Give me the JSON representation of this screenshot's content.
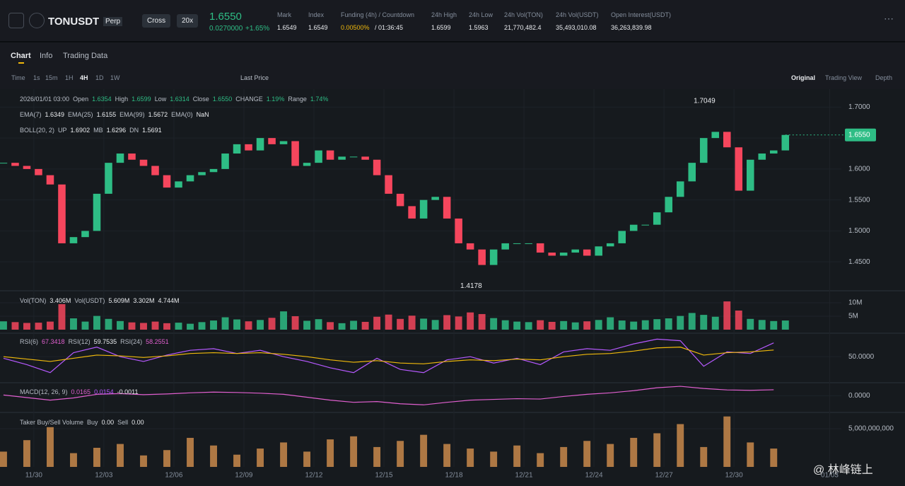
{
  "header": {
    "symbol": "TONUSDT",
    "contract": "Perp",
    "margin": "Cross",
    "leverage": "20x",
    "price": "1.6550",
    "change_abs": "0.0270000",
    "change_pct": "+1.65%",
    "stats": [
      {
        "label": "Mark",
        "value": "1.6549"
      },
      {
        "label": "Index",
        "value": "1.6549"
      },
      {
        "label": "Funding (4h) / Countdown",
        "value": "0.00500%",
        "extra": "/ 01:36:45"
      },
      {
        "label": "24h High",
        "value": "1.6599"
      },
      {
        "label": "24h Low",
        "value": "1.5963"
      },
      {
        "label": "24h Vol(TON)",
        "value": "21,770,482.4"
      },
      {
        "label": "24h Vol(USDT)",
        "value": "35,493,010.08"
      },
      {
        "label": "Open Interest(USDT)",
        "value": "36,263,839.98"
      }
    ]
  },
  "tabs": [
    "Chart",
    "Info",
    "Trading Data"
  ],
  "intervals": [
    "Time",
    "1s",
    "15m",
    "1H",
    "4H",
    "1D",
    "1W"
  ],
  "price_type": "Last Price",
  "views": [
    "Original",
    "Trading View",
    "Depth"
  ],
  "info_lines": [
    [
      "2026/01/01 03:00",
      "Open",
      "1.6354",
      "High",
      "1.6599",
      "Low",
      "1.6314",
      "Close",
      "1.6550",
      "CHANGE",
      "1.19%",
      "Range",
      "1.74%"
    ],
    [
      "EMA(7)",
      "1.6349",
      "EMA(25)",
      "1.6155",
      "EMA(99)",
      "1.5672",
      "EMA(0)",
      "NaN"
    ],
    [
      "BOLL(20, 2)",
      "UP",
      "1.6902",
      "MB",
      "1.6296",
      "DN",
      "1.5691"
    ],
    [
      "Vol(TON)",
      "3.406M",
      "Vol(USDT)",
      "5.609M",
      "3.302M",
      "4.744M"
    ],
    [
      "RSI(6)",
      "67.3418",
      "RSI(12)",
      "59.7535",
      "RSI(24)",
      "58.2551"
    ],
    [
      "MACD(12, 26, 9)",
      "0.0165",
      "0.0154",
      "-0.0011"
    ],
    [
      "Taker Buy/Sell Volume",
      "Buy",
      "0.00",
      "Sell",
      "0.00"
    ]
  ],
  "watermark": "@ 林峰链上",
  "chart_data": [
    {
      "type": "candlestick",
      "up_color": "#2ebd85",
      "down_color": "#f6465d",
      "values": [
        1.61,
        1.605,
        1.6,
        1.59,
        1.575,
        1.48,
        1.49,
        1.5,
        1.56,
        1.61,
        1.625,
        1.615,
        1.605,
        1.59,
        1.57,
        1.58,
        1.59,
        1.595,
        1.6,
        1.625,
        1.64,
        1.63,
        1.65,
        1.64,
        1.645,
        1.605,
        1.61,
        1.63,
        1.615,
        1.62,
        1.62,
        1.615,
        1.59,
        1.56,
        1.54,
        1.52,
        1.55,
        1.555,
        1.52,
        1.48,
        1.47,
        1.445,
        1.47,
        1.48,
        1.48,
        1.48,
        1.465,
        1.46,
        1.465,
        1.47,
        1.46,
        1.475,
        1.48,
        1.5,
        1.51,
        1.51,
        1.53,
        1.555,
        1.58,
        1.61,
        1.65,
        1.66,
        1.635,
        1.565,
        1.615,
        1.625,
        1.63,
        1.655
      ],
      "xlim": [
        -0.3,
        71.8
      ],
      "xticks": [
        {
          "value": 2.6,
          "label": "11/30"
        },
        {
          "value": 8.6,
          "label": "12/03"
        },
        {
          "value": 14.6,
          "label": "12/06"
        },
        {
          "value": 20.6,
          "label": "12/09"
        },
        {
          "value": 26.6,
          "label": "12/12"
        },
        {
          "value": 32.6,
          "label": "12/15"
        },
        {
          "value": 38.6,
          "label": "12/18"
        },
        {
          "value": 44.6,
          "label": "12/21"
        },
        {
          "value": 50.6,
          "label": "12/24"
        },
        {
          "value": 56.6,
          "label": "12/27"
        },
        {
          "value": 62.6,
          "label": "12/30"
        },
        {
          "value": 70.8,
          "label": "01/03"
        }
      ],
      "ylim": [
        1.4045,
        1.7267
      ],
      "yticks": [
        {
          "value": 1.45,
          "label": "1.4500"
        },
        {
          "value": 1.5,
          "label": "1.5000"
        },
        {
          "value": 1.55,
          "label": "1.5500"
        },
        {
          "value": 1.6,
          "label": "1.6000"
        },
        {
          "value": 1.65,
          "label": "1.6500"
        },
        {
          "value": 1.7,
          "label": "1.7000"
        }
      ],
      "annotations": [
        {
          "value": 1.7049,
          "label": "1.7049"
        },
        {
          "value": 1.4178,
          "label": "1.4178"
        }
      ],
      "last_price": {
        "value": 1.655,
        "label": "1.6550"
      }
    },
    {
      "type": "bar",
      "ylim": [
        0,
        14.2
      ],
      "yticks": [
        {
          "value": 5,
          "label": "5M"
        },
        {
          "value": 10,
          "label": "10M"
        }
      ],
      "values": [
        3.1,
        2.8,
        2.5,
        2.6,
        3.0,
        9.5,
        4.2,
        3.0,
        5.1,
        4.0,
        3.2,
        2.7,
        2.5,
        3.0,
        2.4,
        2.6,
        2.2,
        2.8,
        3.4,
        4.6,
        3.8,
        3.1,
        3.6,
        4.4,
        6.8,
        5.0,
        3.3,
        3.9,
        2.8,
        2.4,
        3.3,
        2.9,
        4.8,
        5.6,
        4.0,
        5.2,
        4.1,
        3.6,
        5.4,
        4.9,
        6.4,
        5.8,
        4.3,
        3.5,
        3.0,
        2.8,
        3.5,
        2.9,
        3.2,
        2.7,
        3.1,
        3.6,
        4.6,
        3.4,
        3.0,
        3.5,
        3.9,
        4.2,
        5.1,
        6.2,
        5.5,
        4.8,
        10.5,
        7.1,
        4.0,
        3.6,
        3.2,
        3.4
      ]
    },
    {
      "type": "line",
      "ylim": [
        20,
        75
      ],
      "yticks": [
        {
          "value": 50,
          "label": "50.0000"
        }
      ],
      "series": [
        {
          "color": "#b659ff",
          "values": [
            48,
            40,
            30,
            55,
            62,
            50,
            44,
            52,
            58,
            60,
            54,
            58,
            50,
            44,
            36,
            30,
            48,
            34,
            30,
            46,
            50,
            42,
            48,
            40,
            56,
            60,
            58,
            66,
            72,
            70,
            38,
            56,
            54,
            67.3
          ]
        },
        {
          "color": "#f0b90b",
          "values": [
            50,
            47,
            44,
            48,
            52,
            51,
            49,
            51,
            54,
            55,
            54,
            55,
            53,
            50,
            46,
            43,
            45,
            42,
            41,
            44,
            46,
            45,
            47,
            46,
            50,
            53,
            54,
            57,
            61,
            62,
            52,
            55,
            56,
            58.3
          ]
        }
      ]
    },
    {
      "type": "line",
      "ylim": [
        -0.04,
        0.03
      ],
      "yticks": [
        {
          "value": 0,
          "label": "0.0000"
        }
      ],
      "series": [
        {
          "color": "#e05fcf",
          "values": [
            0.002,
            -0.005,
            -0.012,
            -0.006,
            0.004,
            0.006,
            0.003,
            0.005,
            0.008,
            0.01,
            0.009,
            0.007,
            0.004,
            -0.004,
            -0.012,
            -0.018,
            -0.016,
            -0.022,
            -0.025,
            -0.018,
            -0.012,
            -0.01,
            -0.008,
            -0.009,
            -0.002,
            0.004,
            0.008,
            0.014,
            0.022,
            0.026,
            0.02,
            0.016,
            0.015,
            0.0165
          ]
        }
      ]
    },
    {
      "type": "bar",
      "color": "#c98a4b",
      "ylim": [
        0,
        6850000000.0
      ],
      "yticks": [
        {
          "value": 5000000000.0,
          "label": "5,000,000,000"
        }
      ],
      "values": [
        2000000000.0,
        3500000000.0,
        5200000000.0,
        1800000000.0,
        2500000000.0,
        3000000000.0,
        1500000000.0,
        2200000000.0,
        3800000000.0,
        2800000000.0,
        1600000000.0,
        2400000000.0,
        3200000000.0,
        2000000000.0,
        3600000000.0,
        4000000000.0,
        2600000000.0,
        3400000000.0,
        4200000000.0,
        3000000000.0,
        2400000000.0,
        2000000000.0,
        2800000000.0,
        1800000000.0,
        2600000000.0,
        3400000000.0,
        3000000000.0,
        3800000000.0,
        4400000000.0,
        5600000000.0,
        2600000000.0,
        6600000000.0,
        3200000000.0,
        2400000000.0
      ]
    }
  ]
}
